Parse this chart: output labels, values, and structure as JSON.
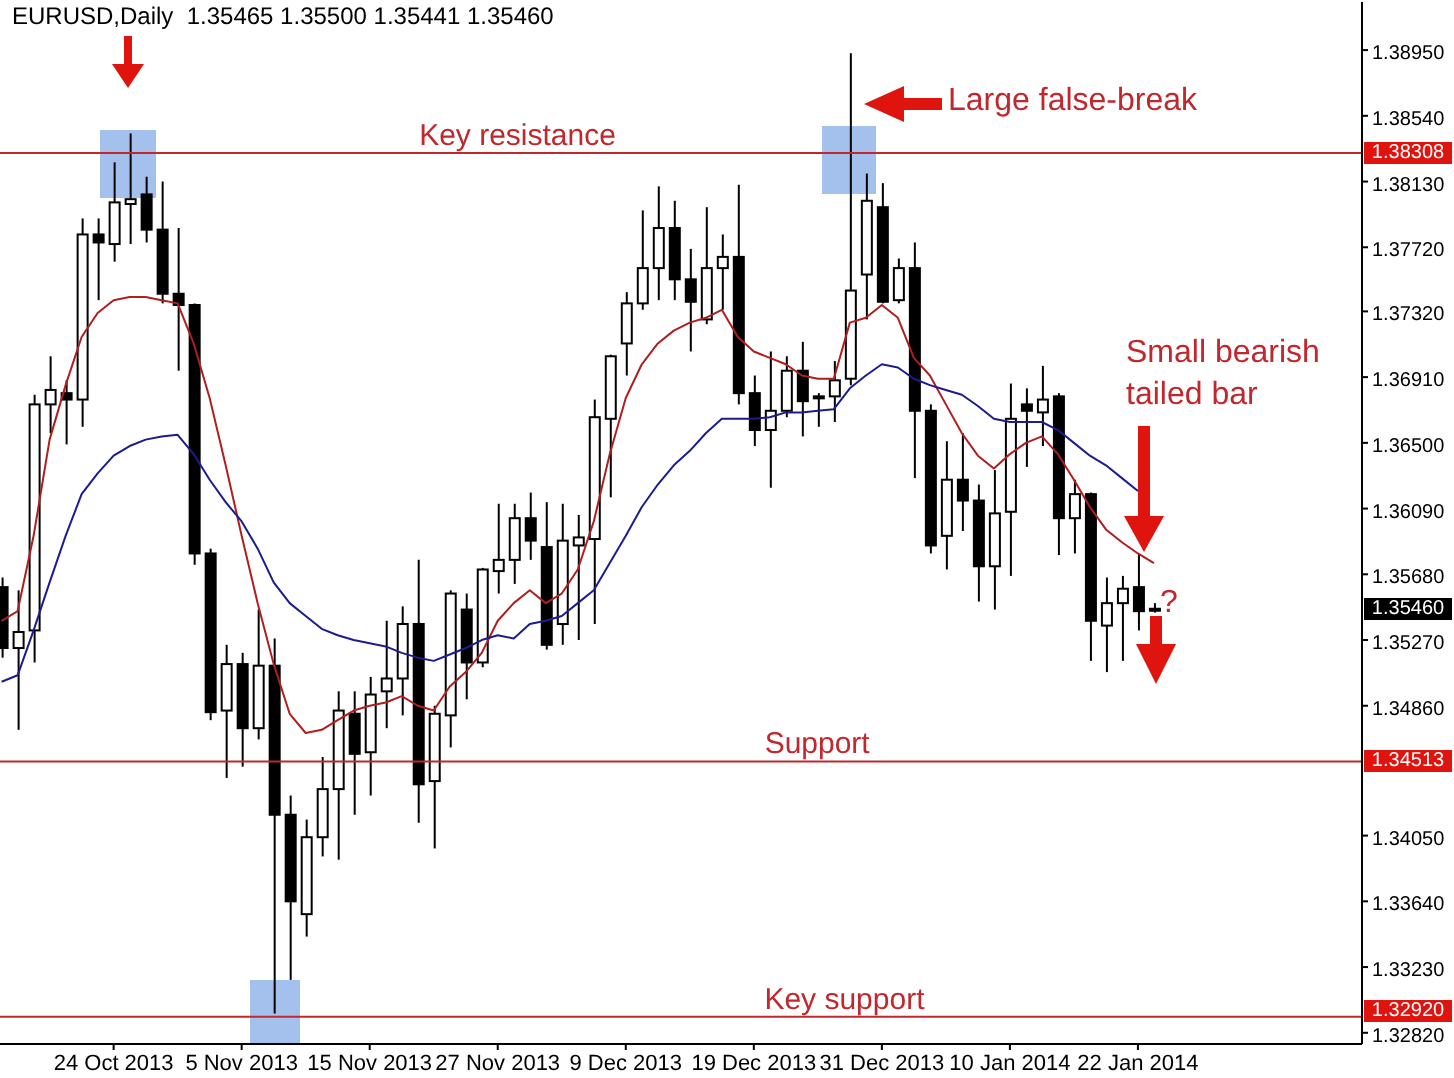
{
  "chart_data": {
    "type": "candlestick",
    "title": "EURUSD,Daily  1.35465 1.35500 1.35441 1.35460",
    "categories": [
      null,
      null,
      null,
      null,
      null,
      null,
      null,
      "24 Oct 2013",
      null,
      null,
      null,
      null,
      null,
      null,
      null,
      "5 Nov 2013",
      null,
      null,
      null,
      null,
      null,
      null,
      null,
      "15 Nov 2013",
      null,
      null,
      null,
      null,
      null,
      null,
      null,
      "27 Nov 2013",
      null,
      null,
      null,
      null,
      null,
      null,
      null,
      "9 Dec 2013",
      null,
      null,
      null,
      null,
      null,
      null,
      null,
      "19 Dec 2013",
      null,
      null,
      null,
      null,
      null,
      null,
      null,
      "31 Dec 2013",
      null,
      null,
      null,
      null,
      null,
      null,
      null,
      "10 Jan 2014",
      null,
      null,
      null,
      null,
      null,
      null,
      null,
      "22 Jan 2014",
      null
    ],
    "ohlc": [
      [
        1.356,
        1.3566,
        1.3516,
        1.3522
      ],
      [
        1.3522,
        1.3558,
        1.3471,
        1.3532
      ],
      [
        1.3533,
        1.368,
        1.3513,
        1.3674
      ],
      [
        1.3674,
        1.3704,
        1.3656,
        1.3683
      ],
      [
        1.3681,
        1.3689,
        1.3649,
        1.3677
      ],
      [
        1.3677,
        1.379,
        1.366,
        1.378
      ],
      [
        1.378,
        1.379,
        1.3739,
        1.3775
      ],
      [
        1.3774,
        1.3825,
        1.3763,
        1.38
      ],
      [
        1.3799,
        1.3843,
        1.3774,
        1.3802
      ],
      [
        1.3805,
        1.3816,
        1.3775,
        1.3783
      ],
      [
        1.3783,
        1.3813,
        1.3737,
        1.3743
      ],
      [
        1.3743,
        1.3784,
        1.3695,
        1.3736
      ],
      [
        1.3736,
        1.3737,
        1.3574,
        1.3581
      ],
      [
        1.3581,
        1.3584,
        1.3477,
        1.3482
      ],
      [
        1.3483,
        1.3524,
        1.3441,
        1.3512
      ],
      [
        1.3512,
        1.3519,
        1.3448,
        1.3472
      ],
      [
        1.3472,
        1.3546,
        1.3465,
        1.3511
      ],
      [
        1.3511,
        1.3528,
        1.3294,
        1.3418
      ],
      [
        1.3418,
        1.343,
        1.3315,
        1.3364
      ],
      [
        1.3356,
        1.3415,
        1.3342,
        1.3404
      ],
      [
        1.3404,
        1.3454,
        1.3392,
        1.3434
      ],
      [
        1.3434,
        1.3495,
        1.339,
        1.3483
      ],
      [
        1.3481,
        1.3495,
        1.3418,
        1.3456
      ],
      [
        1.3457,
        1.3504,
        1.343,
        1.3493
      ],
      [
        1.3495,
        1.3539,
        1.3472,
        1.3503
      ],
      [
        1.3503,
        1.3548,
        1.348,
        1.3537
      ],
      [
        1.3537,
        1.3577,
        1.3413,
        1.3437
      ],
      [
        1.3439,
        1.3486,
        1.3397,
        1.3481
      ],
      [
        1.348,
        1.3558,
        1.346,
        1.3556
      ],
      [
        1.3546,
        1.3556,
        1.349,
        1.3513
      ],
      [
        1.3513,
        1.3572,
        1.351,
        1.3571
      ],
      [
        1.357,
        1.3612,
        1.3556,
        1.3577
      ],
      [
        1.3577,
        1.3612,
        1.3562,
        1.3603
      ],
      [
        1.3603,
        1.3619,
        1.3577,
        1.3589
      ],
      [
        1.3585,
        1.3613,
        1.3521,
        1.3524
      ],
      [
        1.3537,
        1.3612,
        1.3524,
        1.3589
      ],
      [
        1.3586,
        1.3605,
        1.3527,
        1.3591
      ],
      [
        1.359,
        1.3677,
        1.3537,
        1.3666
      ],
      [
        1.3665,
        1.3705,
        1.3616,
        1.3704
      ],
      [
        1.3712,
        1.3744,
        1.3692,
        1.3737
      ],
      [
        1.3737,
        1.3795,
        1.3733,
        1.3759
      ],
      [
        1.3759,
        1.381,
        1.3739,
        1.3784
      ],
      [
        1.3784,
        1.3801,
        1.3739,
        1.3752
      ],
      [
        1.3752,
        1.3771,
        1.3707,
        1.3738
      ],
      [
        1.3727,
        1.3797,
        1.3724,
        1.3759
      ],
      [
        1.3759,
        1.378,
        1.3733,
        1.3766
      ],
      [
        1.3766,
        1.3811,
        1.3674,
        1.3681
      ],
      [
        1.3681,
        1.3692,
        1.3648,
        1.3658
      ],
      [
        1.3658,
        1.3707,
        1.3622,
        1.367
      ],
      [
        1.367,
        1.3704,
        1.3666,
        1.3695
      ],
      [
        1.3695,
        1.3713,
        1.3654,
        1.3676
      ],
      [
        1.3678,
        1.3681,
        1.366,
        1.3679
      ],
      [
        1.3679,
        1.3701,
        1.3663,
        1.3689
      ],
      [
        1.369,
        1.3893,
        1.3686,
        1.3745
      ],
      [
        1.3755,
        1.3818,
        1.3727,
        1.3801
      ],
      [
        1.3797,
        1.3812,
        1.3737,
        1.3738
      ],
      [
        1.3739,
        1.3765,
        1.3737,
        1.3759
      ],
      [
        1.3759,
        1.3775,
        1.3628,
        1.367
      ],
      [
        1.367,
        1.3674,
        1.3581,
        1.3586
      ],
      [
        1.3592,
        1.3651,
        1.3571,
        1.3627
      ],
      [
        1.3627,
        1.3656,
        1.3595,
        1.3614
      ],
      [
        1.3614,
        1.3624,
        1.3551,
        1.3573
      ],
      [
        1.3573,
        1.3633,
        1.3546,
        1.3606
      ],
      [
        1.3607,
        1.3687,
        1.3567,
        1.3665
      ],
      [
        1.3674,
        1.3684,
        1.3635,
        1.367
      ],
      [
        1.3669,
        1.3698,
        1.3648,
        1.3677
      ],
      [
        1.3679,
        1.3681,
        1.358,
        1.3603
      ],
      [
        1.3603,
        1.3627,
        1.3581,
        1.3618
      ],
      [
        1.3618,
        1.3619,
        1.3514,
        1.3539
      ],
      [
        1.3536,
        1.3566,
        1.3507,
        1.355
      ],
      [
        1.355,
        1.3567,
        1.3514,
        1.3559
      ],
      [
        1.356,
        1.3581,
        1.3533,
        1.3545
      ],
      [
        1.35465,
        1.355,
        1.35441,
        1.3546
      ]
    ],
    "series": [
      {
        "type": "line",
        "color": "#b01e1e",
        "values": [
          1.3539,
          1.3545,
          1.3592,
          1.3652,
          1.3686,
          1.3716,
          1.3731,
          1.3739,
          1.3741,
          1.3741,
          1.3739,
          1.3737,
          1.3712,
          1.3678,
          1.3636,
          1.3592,
          1.355,
          1.3512,
          1.3481,
          1.3469,
          1.3471,
          1.3477,
          1.3483,
          1.3486,
          1.3488,
          1.3492,
          1.3486,
          1.3483,
          1.3498,
          1.3507,
          1.3519,
          1.3539,
          1.355,
          1.3558,
          1.355,
          1.3556,
          1.3571,
          1.3601,
          1.3643,
          1.3678,
          1.3699,
          1.3712,
          1.372,
          1.3725,
          1.3728,
          1.3733,
          1.3716,
          1.3707,
          1.3703,
          1.3699,
          1.3692,
          1.369,
          1.369,
          1.3725,
          1.3728,
          1.3736,
          1.3728,
          1.3703,
          1.3692,
          1.3674,
          1.3656,
          1.3642,
          1.3634,
          1.3643,
          1.365,
          1.3654,
          1.3643,
          1.3627,
          1.361,
          1.3596,
          1.3588,
          1.3581,
          1.3575
        ]
      },
      {
        "type": "line",
        "color": "#1c1c8f",
        "values": [
          1.3501,
          1.3505,
          1.3533,
          1.3563,
          1.3592,
          1.3618,
          1.3631,
          1.3642,
          1.3648,
          1.3652,
          1.3654,
          1.3655,
          1.3643,
          1.3627,
          1.3613,
          1.3601,
          1.3584,
          1.3563,
          1.355,
          1.3542,
          1.3534,
          1.353,
          1.3527,
          1.3525,
          1.3523,
          1.3519,
          1.3516,
          1.3514,
          1.3518,
          1.3522,
          1.3527,
          1.353,
          1.3528,
          1.3537,
          1.3539,
          1.3542,
          1.355,
          1.3558,
          1.3575,
          1.3592,
          1.361,
          1.3624,
          1.3636,
          1.3645,
          1.3656,
          1.3665,
          1.3665,
          1.3665,
          1.3666,
          1.3669,
          1.3669,
          1.367,
          1.3671,
          1.3684,
          1.3692,
          1.3699,
          1.3697,
          1.369,
          1.3686,
          1.3683,
          1.368,
          1.3673,
          1.3665,
          1.3663,
          1.3663,
          1.3663,
          1.3658,
          1.365,
          1.3642,
          1.3636,
          1.3628,
          1.362,
          null
        ]
      }
    ],
    "ylim": [
      1.3275,
      1.3925
    ],
    "yticks": [
      {
        "value": 1.3895,
        "label": "1.38950"
      },
      {
        "value": 1.3854,
        "label": "1.38540"
      },
      {
        "value": 1.3813,
        "label": "1.38130"
      },
      {
        "value": 1.3772,
        "label": "1.37720"
      },
      {
        "value": 1.3732,
        "label": "1.37320"
      },
      {
        "value": 1.3691,
        "label": "1.36910"
      },
      {
        "value": 1.365,
        "label": "1.36500"
      },
      {
        "value": 1.3609,
        "label": "1.36090"
      },
      {
        "value": 1.3568,
        "label": "1.35680"
      },
      {
        "value": 1.3527,
        "label": "1.35270"
      },
      {
        "value": 1.3486,
        "label": "1.34860"
      },
      {
        "value": 1.3405,
        "label": "1.34050"
      },
      {
        "value": 1.3364,
        "label": "1.33640"
      },
      {
        "value": 1.3323,
        "label": "1.33230"
      },
      {
        "value": 1.3282,
        "label": "1.32820"
      }
    ],
    "ref_lines": [
      {
        "axis": "y",
        "value": 1.38308,
        "label": "Key resistance",
        "color": "#c0282d"
      },
      {
        "axis": "y",
        "value": 1.34513,
        "label": "Support",
        "color": "#c0282d"
      },
      {
        "axis": "y",
        "value": 1.3292,
        "label": "Key support",
        "color": "#c0282d"
      }
    ],
    "annotations": [
      "Large false-break",
      "Small bearish tailed bar",
      "?",
      "1.38308",
      "1.34513",
      "1.32920",
      "1.35460"
    ]
  }
}
